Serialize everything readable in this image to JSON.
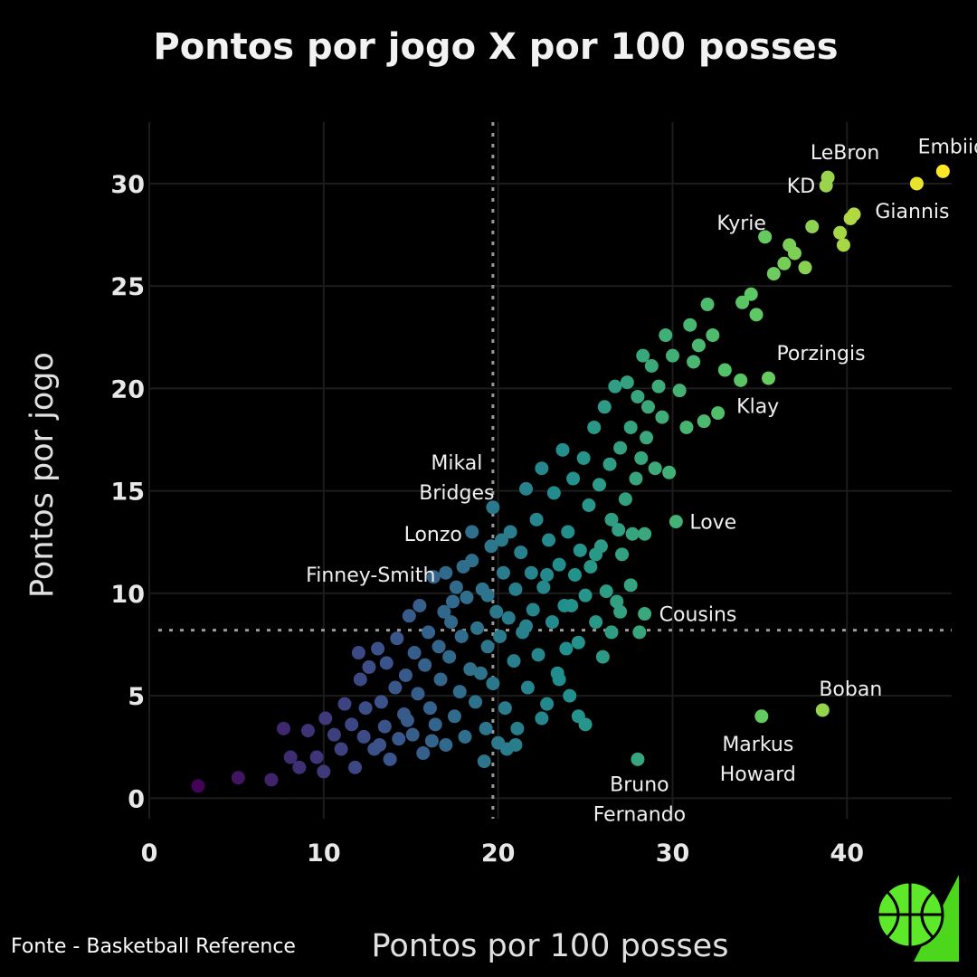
{
  "chart_data": {
    "type": "scatter",
    "title": "Pontos por jogo X por 100 posses",
    "xlabel": "Pontos por 100 posses",
    "ylabel": "Pontos por jogo",
    "xlim": [
      0,
      46
    ],
    "ylim": [
      -1,
      33
    ],
    "x_ticks": [
      0,
      10,
      20,
      30,
      40
    ],
    "y_ticks": [
      0,
      5,
      10,
      15,
      20,
      25,
      30
    ],
    "grid": true,
    "reference_lines": {
      "x": 19.7,
      "y": 8.2
    },
    "colorscale": [
      "#440154",
      "#3b528b",
      "#21908d",
      "#5dc963",
      "#fde725"
    ],
    "labeled_points": [
      {
        "label": "Embiid",
        "x": 45.5,
        "y": 30.6
      },
      {
        "label": "Giannis",
        "x": 44.0,
        "y": 30.0
      },
      {
        "label": "LeBron",
        "x": 38.9,
        "y": 30.3
      },
      {
        "label": "KD",
        "x": 38.8,
        "y": 29.9
      },
      {
        "label": "Kyrie",
        "x": 35.3,
        "y": 27.4
      },
      {
        "label": "Porzingis",
        "x": 35.5,
        "y": 20.5
      },
      {
        "label": "Klay",
        "x": 33.9,
        "y": 20.4
      },
      {
        "label": "Mikal Bridges",
        "x": 19.7,
        "y": 14.2
      },
      {
        "label": "Lonzo",
        "x": 18.5,
        "y": 13.0
      },
      {
        "label": "Finney-Smith",
        "x": 17.0,
        "y": 11.0
      },
      {
        "label": "Love",
        "x": 30.2,
        "y": 13.5
      },
      {
        "label": "Cousins",
        "x": 28.4,
        "y": 9.0
      },
      {
        "label": "Boban",
        "x": 38.6,
        "y": 4.3
      },
      {
        "label": "Markus Howard",
        "x": 35.1,
        "y": 4.0
      },
      {
        "label": "Bruno Fernando",
        "x": 28.0,
        "y": 1.9
      }
    ],
    "other_points": [
      [
        2.8,
        0.6
      ],
      [
        5.1,
        1.0
      ],
      [
        7.0,
        0.9
      ],
      [
        7.7,
        3.4
      ],
      [
        8.1,
        2.0
      ],
      [
        8.6,
        1.5
      ],
      [
        9.1,
        3.3
      ],
      [
        9.6,
        2.0
      ],
      [
        10.0,
        1.3
      ],
      [
        10.1,
        3.9
      ],
      [
        10.6,
        3.1
      ],
      [
        11.0,
        2.4
      ],
      [
        11.2,
        4.6
      ],
      [
        11.6,
        3.6
      ],
      [
        11.8,
        1.5
      ],
      [
        12.1,
        5.8
      ],
      [
        12.0,
        7.1
      ],
      [
        12.3,
        3.0
      ],
      [
        12.6,
        6.4
      ],
      [
        12.9,
        2.4
      ],
      [
        13.1,
        7.3
      ],
      [
        13.3,
        4.7
      ],
      [
        13.5,
        3.5
      ],
      [
        13.6,
        6.6
      ],
      [
        13.8,
        1.9
      ],
      [
        14.1,
        5.4
      ],
      [
        14.2,
        7.8
      ],
      [
        14.3,
        2.9
      ],
      [
        14.6,
        4.1
      ],
      [
        14.7,
        6.0
      ],
      [
        14.9,
        8.9
      ],
      [
        15.1,
        3.1
      ],
      [
        15.2,
        7.1
      ],
      [
        15.4,
        5.1
      ],
      [
        15.5,
        9.4
      ],
      [
        15.7,
        2.2
      ],
      [
        15.8,
        6.5
      ],
      [
        16.0,
        8.1
      ],
      [
        16.1,
        4.4
      ],
      [
        16.3,
        10.8
      ],
      [
        16.4,
        3.6
      ],
      [
        16.6,
        7.4
      ],
      [
        16.7,
        5.8
      ],
      [
        16.9,
        9.1
      ],
      [
        17.0,
        2.6
      ],
      [
        17.2,
        6.9
      ],
      [
        17.3,
        8.6
      ],
      [
        17.5,
        4.0
      ],
      [
        17.6,
        10.3
      ],
      [
        17.8,
        5.2
      ],
      [
        17.9,
        7.9
      ],
      [
        18.1,
        3.0
      ],
      [
        18.2,
        9.8
      ],
      [
        18.4,
        6.3
      ],
      [
        18.5,
        11.6
      ],
      [
        18.7,
        4.7
      ],
      [
        18.8,
        8.3
      ],
      [
        19.0,
        6.1
      ],
      [
        19.1,
        10.2
      ],
      [
        19.3,
        3.4
      ],
      [
        19.4,
        7.4
      ],
      [
        19.6,
        12.3
      ],
      [
        19.7,
        5.6
      ],
      [
        19.9,
        9.1
      ],
      [
        20.0,
        2.7
      ],
      [
        20.1,
        7.9
      ],
      [
        20.3,
        11.0
      ],
      [
        20.4,
        4.4
      ],
      [
        20.6,
        8.8
      ],
      [
        20.7,
        13.0
      ],
      [
        20.9,
        6.7
      ],
      [
        21.0,
        10.2
      ],
      [
        21.1,
        3.4
      ],
      [
        21.3,
        12.0
      ],
      [
        21.4,
        8.1
      ],
      [
        21.6,
        15.1
      ],
      [
        21.7,
        5.4
      ],
      [
        21.9,
        11.0
      ],
      [
        22.0,
        9.2
      ],
      [
        22.2,
        13.6
      ],
      [
        22.3,
        7.0
      ],
      [
        22.5,
        16.1
      ],
      [
        22.6,
        10.3
      ],
      [
        22.8,
        4.6
      ],
      [
        22.9,
        12.6
      ],
      [
        23.1,
        8.6
      ],
      [
        23.2,
        14.9
      ],
      [
        23.4,
        6.1
      ],
      [
        23.5,
        11.4
      ],
      [
        23.7,
        17.0
      ],
      [
        23.8,
        9.4
      ],
      [
        24.0,
        13.0
      ],
      [
        24.1,
        5.0
      ],
      [
        24.3,
        15.6
      ],
      [
        24.4,
        10.9
      ],
      [
        24.6,
        7.6
      ],
      [
        24.7,
        12.1
      ],
      [
        24.9,
        16.6
      ],
      [
        25.0,
        9.9
      ],
      [
        25.2,
        14.3
      ],
      [
        25.3,
        11.3
      ],
      [
        25.5,
        18.1
      ],
      [
        25.6,
        8.6
      ],
      [
        25.8,
        15.3
      ],
      [
        25.9,
        12.3
      ],
      [
        26.1,
        19.1
      ],
      [
        26.2,
        10.1
      ],
      [
        26.4,
        16.3
      ],
      [
        26.5,
        13.6
      ],
      [
        26.7,
        20.1
      ],
      [
        26.8,
        9.6
      ],
      [
        27.0,
        17.1
      ],
      [
        27.1,
        11.9
      ],
      [
        27.3,
        14.6
      ],
      [
        27.4,
        20.3
      ],
      [
        27.6,
        18.1
      ],
      [
        27.7,
        12.9
      ],
      [
        27.9,
        15.6
      ],
      [
        28.0,
        19.6
      ],
      [
        28.2,
        16.6
      ],
      [
        28.3,
        21.6
      ],
      [
        28.5,
        17.6
      ],
      [
        28.6,
        19.1
      ],
      [
        28.8,
        21.1
      ],
      [
        29.0,
        16.1
      ],
      [
        29.2,
        20.1
      ],
      [
        29.4,
        18.6
      ],
      [
        29.6,
        22.6
      ],
      [
        29.8,
        15.9
      ],
      [
        30.0,
        21.6
      ],
      [
        30.4,
        19.9
      ],
      [
        30.8,
        18.1
      ],
      [
        31.0,
        23.1
      ],
      [
        31.2,
        21.3
      ],
      [
        31.5,
        22.1
      ],
      [
        31.8,
        18.4
      ],
      [
        32.0,
        24.1
      ],
      [
        32.3,
        22.6
      ],
      [
        32.6,
        18.8
      ],
      [
        33.0,
        20.9
      ],
      [
        34.0,
        24.2
      ],
      [
        34.5,
        24.6
      ],
      [
        34.8,
        23.6
      ],
      [
        35.8,
        25.6
      ],
      [
        36.4,
        26.1
      ],
      [
        36.7,
        27.0
      ],
      [
        37.0,
        26.6
      ],
      [
        37.6,
        25.9
      ],
      [
        38.0,
        27.9
      ],
      [
        39.6,
        27.6
      ],
      [
        39.8,
        27.0
      ],
      [
        40.2,
        28.3
      ],
      [
        40.4,
        28.5
      ],
      [
        21.0,
        2.6
      ],
      [
        22.5,
        3.9
      ],
      [
        23.5,
        5.8
      ],
      [
        24.6,
        4.0
      ],
      [
        25.0,
        3.6
      ],
      [
        26.0,
        6.9
      ],
      [
        26.5,
        8.1
      ],
      [
        27.0,
        9.1
      ],
      [
        27.6,
        10.4
      ],
      [
        28.1,
        8.1
      ],
      [
        28.4,
        12.9
      ],
      [
        19.2,
        1.8
      ],
      [
        20.5,
        2.4
      ],
      [
        16.2,
        2.8
      ],
      [
        14.8,
        3.8
      ],
      [
        13.2,
        2.6
      ],
      [
        12.4,
        4.4
      ],
      [
        22.8,
        10.9
      ],
      [
        21.6,
        8.4
      ],
      [
        23.9,
        7.3
      ],
      [
        25.6,
        11.9
      ],
      [
        26.9,
        13.1
      ],
      [
        24.2,
        9.4
      ],
      [
        20.2,
        12.6
      ],
      [
        19.4,
        9.9
      ],
      [
        18.0,
        11.3
      ],
      [
        17.4,
        9.6
      ]
    ]
  },
  "footer": {
    "source_text": "Fonte - Basketball Reference",
    "logo_icon": "basketball-icon"
  }
}
